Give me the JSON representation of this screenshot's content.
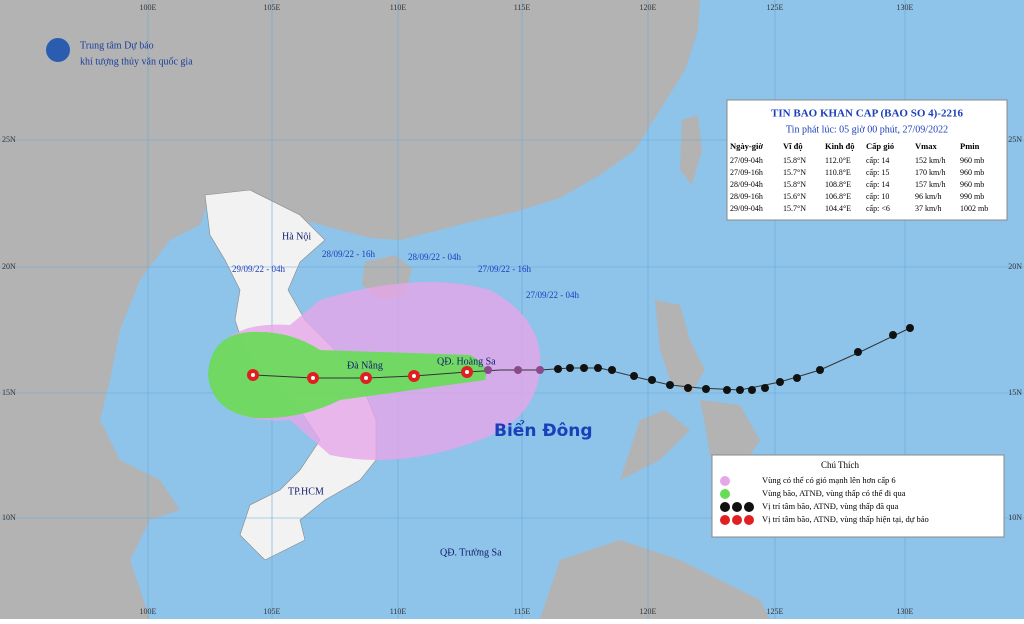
{
  "header": {
    "org_line1": "Trung tâm Dự báo",
    "org_line2": "khí tượng thủy văn quốc gia"
  },
  "bulletin": {
    "title": "TIN BAO KHAN CAP  (BAO SO 4)-2216",
    "issued": "Tin phát lúc: 05 giờ 00 phút, 27/09/2022",
    "columns": [
      "Ngày-giờ",
      "Vĩ độ",
      "Kinh độ",
      "Cấp gió",
      "Vmax",
      "Pmin"
    ],
    "rows": [
      [
        "27/09-04h",
        "15.8°N",
        "112.0°E",
        "cấp: 14",
        "152 km/h",
        "960 mb"
      ],
      [
        "27/09-16h",
        "15.7°N",
        "110.8°E",
        "cấp: 15",
        "170 km/h",
        "960 mb"
      ],
      [
        "28/09-04h",
        "15.8°N",
        "108.8°E",
        "cấp: 14",
        "157 km/h",
        "960 mb"
      ],
      [
        "28/09-16h",
        "15.6°N",
        "106.8°E",
        "cấp: 10",
        "96 km/h",
        "990 mb"
      ],
      [
        "29/09-04h",
        "15.7°N",
        "104.4°E",
        "cấp: <6",
        "37 km/h",
        "1002 mb"
      ]
    ]
  },
  "map": {
    "lon_labels": [
      "100E",
      "105E",
      "110E",
      "115E",
      "120E",
      "125E",
      "130E"
    ],
    "lat_labels": [
      "25N",
      "20N",
      "15N",
      "10N"
    ],
    "places": [
      "Hà Nội",
      "TP.HCM",
      "QĐ. Trường Sa",
      "QĐ. Hoàng Sa",
      "Đà Nẵng"
    ],
    "forecast_times": [
      "28/09/22 - 16h",
      "28/09/22 - 04h",
      "27/09/22 - 16h",
      "27/09/22 - 04h",
      "29/09/22 - 04h"
    ],
    "sea_label": "Biển Đông"
  },
  "legend": {
    "title": "Chú Thích",
    "items": [
      "Vùng có thể có gió mạnh lên hơn cấp 6",
      "Vùng bão, ATNĐ, vùng thấp có thể đi qua",
      "Vị trí tâm bão, ATNĐ, vùng thấp đã qua",
      "Vị trí tâm bão, ATNĐ, vùng thấp hiện tại, dự báo"
    ]
  }
}
